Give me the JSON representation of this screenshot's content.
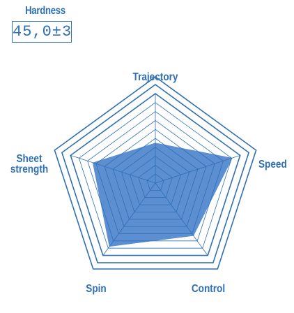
{
  "hardness": {
    "label": "Hardness",
    "value": "45,0±3"
  },
  "colors": {
    "accent": "#2f6fb3",
    "fill": "#5b8fd2",
    "grid": "#2f6fb3"
  },
  "chart_data": {
    "type": "radar",
    "title": "",
    "axes": [
      {
        "name": "Trajectory",
        "label_lines": [
          "Trajectory"
        ]
      },
      {
        "name": "Speed",
        "label_lines": [
          "Speed"
        ]
      },
      {
        "name": "Control",
        "label_lines": [
          "Control"
        ]
      },
      {
        "name": "Spin",
        "label_lines": [
          "Spin"
        ]
      },
      {
        "name": "Sheet strength",
        "label_lines": [
          "Sheet",
          "strength"
        ]
      }
    ],
    "scale_levels": 10,
    "range": [
      0,
      10
    ],
    "series": [
      {
        "values": [
          4.5,
          9.1,
          7.3,
          8.8,
          7.4
        ]
      }
    ],
    "grid": true
  }
}
